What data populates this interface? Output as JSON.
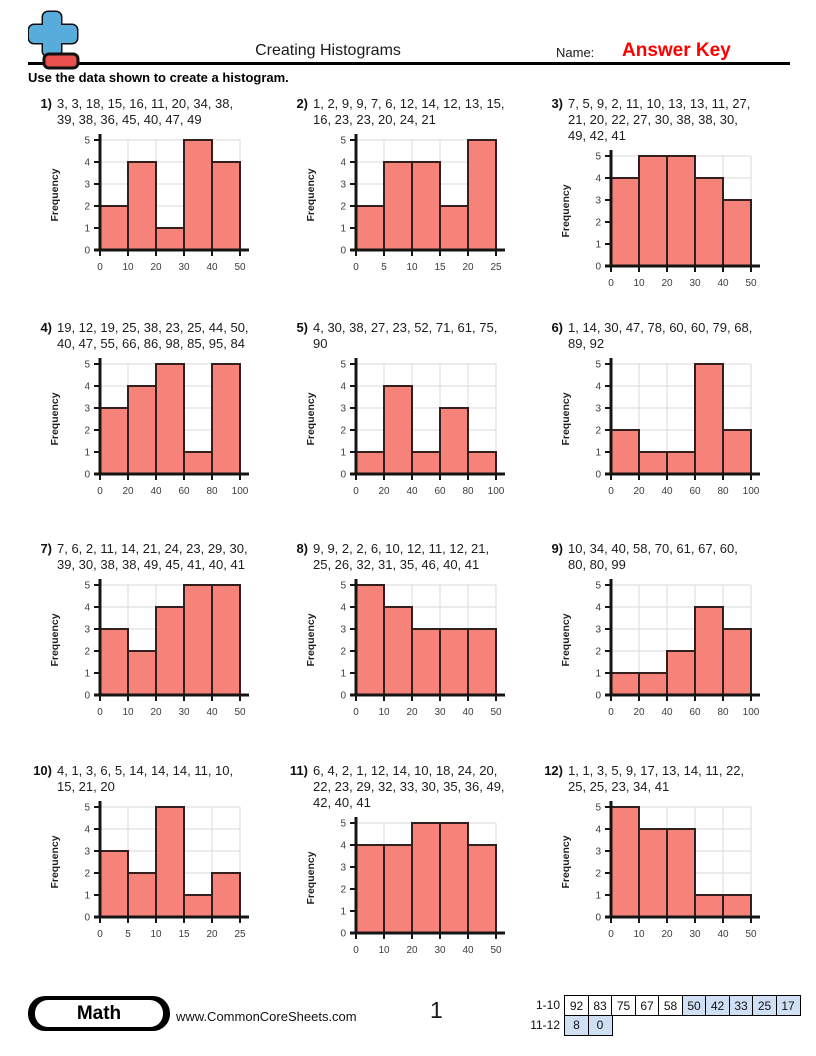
{
  "header": {
    "title": "Creating Histograms",
    "name_label": "Name:",
    "answer_key": "Answer Key",
    "answer_key_color": "#ff0000",
    "logo_icon": "plus-icon",
    "logo_colors": {
      "blue": "#58acdc",
      "red": "#e9504e",
      "outline": "#111111"
    }
  },
  "instructions": "Use the data shown to create a histogram.",
  "chart_style": {
    "bar_fill": "#f6837a",
    "bar_stroke": "#33201e",
    "grid_color": "#dadada",
    "axis_color": "#151515"
  },
  "problems": [
    {
      "number": "1)",
      "data_text": "3, 3, 18, 15, 16, 11, 20, 34, 38,\n39, 38, 36, 45, 40, 47, 49",
      "chart": {
        "type": "bar",
        "ylabel": "Frequency",
        "ylim": [
          0,
          5
        ],
        "bin_edges": [
          0,
          10,
          20,
          30,
          40,
          50
        ],
        "frequencies": [
          2,
          4,
          1,
          5,
          4
        ]
      }
    },
    {
      "number": "2)",
      "data_text": "1, 2, 9, 9, 7, 6, 12, 14, 12, 13, 15,\n16, 23, 23, 20, 24, 21",
      "chart": {
        "type": "bar",
        "ylabel": "Frequency",
        "ylim": [
          0,
          5
        ],
        "bin_edges": [
          0,
          5,
          10,
          15,
          20,
          25
        ],
        "frequencies": [
          2,
          4,
          4,
          2,
          5
        ]
      }
    },
    {
      "number": "3)",
      "data_text": "7, 5, 9, 2, 11, 10, 13, 13, 11, 27,\n21, 20, 22, 27, 30, 38, 38, 30,\n49, 42, 41",
      "chart": {
        "type": "bar",
        "ylabel": "Frequency",
        "ylim": [
          0,
          5
        ],
        "bin_edges": [
          0,
          10,
          20,
          30,
          40,
          50
        ],
        "frequencies": [
          4,
          5,
          5,
          4,
          3
        ]
      }
    },
    {
      "number": "4)",
      "data_text": "19, 12, 19, 25, 38, 23, 25, 44, 50,\n40, 47, 55, 66, 86, 98, 85, 95, 84",
      "chart": {
        "type": "bar",
        "ylabel": "Frequency",
        "ylim": [
          0,
          5
        ],
        "bin_edges": [
          0,
          20,
          40,
          60,
          80,
          100
        ],
        "frequencies": [
          3,
          4,
          5,
          1,
          5
        ]
      }
    },
    {
      "number": "5)",
      "data_text": "4, 30, 38, 27, 23, 52, 71, 61, 75,\n90",
      "chart": {
        "type": "bar",
        "ylabel": "Frequency",
        "ylim": [
          0,
          5
        ],
        "bin_edges": [
          0,
          20,
          40,
          60,
          80,
          100
        ],
        "frequencies": [
          1,
          4,
          1,
          3,
          1
        ]
      }
    },
    {
      "number": "6)",
      "data_text": "1, 14, 30, 47, 78, 60, 60, 79, 68,\n89, 92",
      "chart": {
        "type": "bar",
        "ylabel": "Frequency",
        "ylim": [
          0,
          5
        ],
        "bin_edges": [
          0,
          20,
          40,
          60,
          80,
          100
        ],
        "frequencies": [
          2,
          1,
          1,
          5,
          2
        ]
      }
    },
    {
      "number": "7)",
      "data_text": "7, 6, 2, 11, 14, 21, 24, 23, 29, 30,\n39, 30, 38, 38, 49, 45, 41, 40, 41",
      "chart": {
        "type": "bar",
        "ylabel": "Frequency",
        "ylim": [
          0,
          5
        ],
        "bin_edges": [
          0,
          10,
          20,
          30,
          40,
          50
        ],
        "frequencies": [
          3,
          2,
          4,
          5,
          5
        ]
      }
    },
    {
      "number": "8)",
      "data_text": "9, 9, 2, 2, 6, 10, 12, 11, 12, 21,\n25, 26, 32, 31, 35, 46, 40, 41",
      "chart": {
        "type": "bar",
        "ylabel": "Frequency",
        "ylim": [
          0,
          5
        ],
        "bin_edges": [
          0,
          10,
          20,
          30,
          40,
          50
        ],
        "frequencies": [
          5,
          4,
          3,
          3,
          3
        ]
      }
    },
    {
      "number": "9)",
      "data_text": "10, 34, 40, 58, 70, 61, 67, 60,\n80, 80, 99",
      "chart": {
        "type": "bar",
        "ylabel": "Frequency",
        "ylim": [
          0,
          5
        ],
        "bin_edges": [
          0,
          20,
          40,
          60,
          80,
          100
        ],
        "frequencies": [
          1,
          1,
          2,
          4,
          3
        ]
      }
    },
    {
      "number": "10)",
      "data_text": "4, 1, 3, 6, 5, 14, 14, 14, 11, 10,\n15, 21, 20",
      "chart": {
        "type": "bar",
        "ylabel": "Frequency",
        "ylim": [
          0,
          5
        ],
        "bin_edges": [
          0,
          5,
          10,
          15,
          20,
          25
        ],
        "frequencies": [
          3,
          2,
          5,
          1,
          2
        ]
      }
    },
    {
      "number": "11)",
      "data_text": "6, 4, 2, 1, 12, 14, 10, 18, 24, 20,\n22, 23, 29, 32, 33, 30, 35, 36, 49,\n42, 40, 41",
      "chart": {
        "type": "bar",
        "ylabel": "Frequency",
        "ylim": [
          0,
          5
        ],
        "bin_edges": [
          0,
          10,
          20,
          30,
          40,
          50
        ],
        "frequencies": [
          4,
          4,
          5,
          5,
          4
        ]
      }
    },
    {
      "number": "12)",
      "data_text": "1, 1, 3, 5, 9, 17, 13, 14, 11, 22,\n25, 25, 23, 34, 41",
      "chart": {
        "type": "bar",
        "ylabel": "Frequency",
        "ylim": [
          0,
          5
        ],
        "bin_edges": [
          0,
          10,
          20,
          30,
          40,
          50
        ],
        "frequencies": [
          5,
          4,
          4,
          1,
          1
        ]
      }
    }
  ],
  "footer": {
    "brand": "Math",
    "website": "www.CommonCoreSheets.com",
    "page_number": "1",
    "score_table": {
      "highlight_color": "#cfdff4",
      "rows": [
        {
          "label": "1-10",
          "values": [
            "92",
            "83",
            "75",
            "67",
            "58",
            "50",
            "42",
            "33",
            "25",
            "17"
          ],
          "highlighted": [
            false,
            false,
            false,
            false,
            false,
            true,
            true,
            true,
            true,
            true
          ]
        },
        {
          "label": "11-12",
          "values": [
            "8",
            "0"
          ],
          "highlighted": [
            true,
            true
          ]
        }
      ]
    }
  }
}
